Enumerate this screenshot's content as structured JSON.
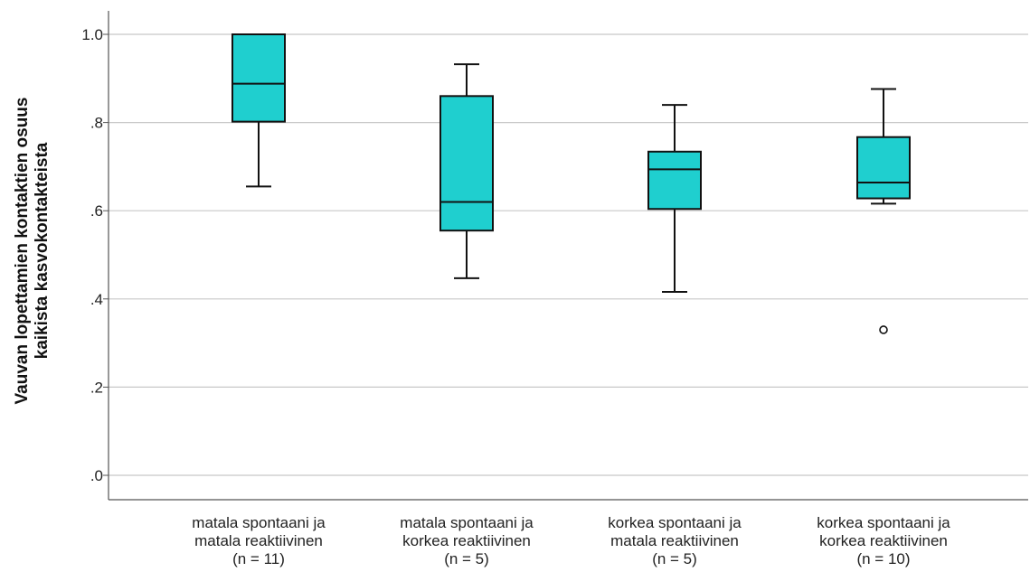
{
  "chart_data": {
    "type": "box",
    "title": "",
    "xlabel": "",
    "ylabel_lines": [
      "Vauvan lopettamien kontaktien osuus",
      "kaikista kasvokontakteista"
    ],
    "ylim": [
      0,
      1.05
    ],
    "yticks": [
      {
        "value": 0.0,
        "label": ".0"
      },
      {
        "value": 0.2,
        "label": ".2"
      },
      {
        "value": 0.4,
        "label": ".4"
      },
      {
        "value": 0.6,
        "label": ".6"
      },
      {
        "value": 0.8,
        "label": ".8"
      },
      {
        "value": 1.0,
        "label": "1.0"
      }
    ],
    "grid": "horizontal",
    "categories": [
      {
        "label_lines": [
          "matala spontaani ja",
          "matala reaktiivinen",
          "(n = 11)"
        ],
        "min": 0.655,
        "q1": 0.802,
        "median": 0.888,
        "q3": 1.0,
        "max": 1.0,
        "outliers": []
      },
      {
        "label_lines": [
          "matala spontaani ja",
          "korkea reaktiivinen",
          "(n = 5)"
        ],
        "min": 0.447,
        "q1": 0.555,
        "median": 0.62,
        "q3": 0.86,
        "max": 0.932,
        "outliers": []
      },
      {
        "label_lines": [
          "korkea spontaani ja",
          "matala reaktiivinen",
          "(n = 5)"
        ],
        "min": 0.416,
        "q1": 0.604,
        "median": 0.694,
        "q3": 0.734,
        "max": 0.84,
        "outliers": []
      },
      {
        "label_lines": [
          "korkea spontaani ja",
          "korkea reaktiivinen",
          "(n = 10)"
        ],
        "min": 0.616,
        "q1": 0.628,
        "median": 0.664,
        "q3": 0.767,
        "max": 0.876,
        "outliers": [
          0.33
        ]
      }
    ],
    "colors": {
      "box_fill": "#1fcfcf",
      "box_stroke": "#111111",
      "grid": "#c8c8c8",
      "axis": "#555555",
      "text": "#222222"
    }
  }
}
